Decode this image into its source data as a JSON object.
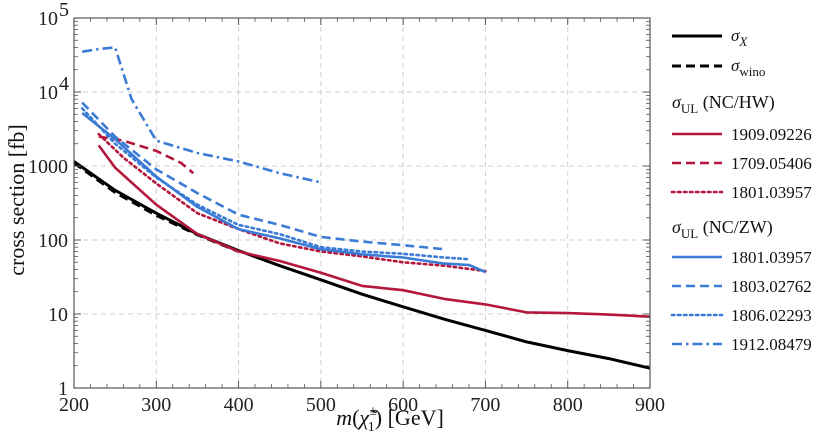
{
  "chart_data": {
    "type": "line",
    "title": "",
    "xlabel_parts": {
      "m": "m(",
      "chi": "χ̃",
      "sup": "±",
      "sub": "1",
      "rest": ") [GeV]"
    },
    "ylabel": "cross section [fb]",
    "xlim": [
      200,
      900
    ],
    "ylim": [
      1,
      100000
    ],
    "yscale": "log",
    "grid": true,
    "legend_position": "right",
    "x_ticks": [
      "200",
      "300",
      "400",
      "500",
      "600",
      "700",
      "800",
      "900"
    ],
    "y_ticks": [
      {
        "value": 1,
        "label": "1"
      },
      {
        "value": 10,
        "label": "10"
      },
      {
        "value": 100,
        "label": "100"
      },
      {
        "value": 1000,
        "label": "1000"
      },
      {
        "value": 10000,
        "label": "10",
        "exp": "4"
      },
      {
        "value": 100000,
        "label": "10",
        "exp": "5"
      }
    ],
    "legend": {
      "theory": [
        {
          "sym": "σ",
          "sub": "X",
          "dash": "solid",
          "color": "#000000"
        },
        {
          "sym": "σ",
          "sub": "wino",
          "dash": "dashed",
          "color": "#000000"
        }
      ],
      "groups": [
        {
          "sym": "σ",
          "sub": "UL",
          "tail": " (NC/HW)"
        },
        {
          "sym": "σ",
          "sub": "UL",
          "tail": " (NC/ZW)"
        }
      ]
    },
    "series": [
      {
        "name": "σX",
        "color": "#000000",
        "dash": "solid",
        "group": "theory",
        "x": [
          200,
          250,
          300,
          350,
          400,
          450,
          500,
          550,
          600,
          650,
          700,
          750,
          800,
          850,
          900
        ],
        "y": [
          1150,
          470,
          230,
          120,
          72,
          45,
          29,
          18.5,
          12.5,
          8.5,
          6,
          4.2,
          3.2,
          2.5,
          1.85
        ]
      },
      {
        "name": "σwino",
        "color": "#000000",
        "dash": "dashed",
        "group": "theory",
        "x": [
          200,
          250,
          300,
          350,
          400
        ],
        "y": [
          1100,
          440,
          215,
          118,
          70
        ]
      },
      {
        "name": "1909.09226",
        "color": "#b5173c",
        "dash": "solid",
        "group": "hw",
        "x": [
          230,
          250,
          300,
          350,
          400,
          450,
          500,
          550,
          600,
          650,
          700,
          750,
          800,
          850,
          900
        ],
        "y": [
          1900,
          950,
          300,
          120,
          70,
          52,
          36,
          24,
          21,
          16,
          13.5,
          10.5,
          10.3,
          9.8,
          9.2
        ]
      },
      {
        "name": "1709.05406",
        "color": "#b5173c",
        "dash": "dashed",
        "group": "hw",
        "x": [
          230,
          260,
          300,
          330,
          345
        ],
        "y": [
          2500,
          2200,
          1600,
          1100,
          800
        ]
      },
      {
        "name": "1801.03957",
        "color": "#b5173c",
        "dash": "dotted",
        "group": "hw",
        "x": [
          230,
          260,
          300,
          350,
          400,
          450,
          500,
          550,
          600,
          650,
          700
        ],
        "y": [
          2700,
          1300,
          580,
          230,
          140,
          90,
          70,
          60,
          50,
          45,
          38
        ]
      },
      {
        "name": "1801.03957",
        "color": "#3a7bd5",
        "dash": "solid",
        "group": "zw",
        "x": [
          210,
          250,
          300,
          350,
          400,
          450,
          500,
          550,
          600,
          650,
          680,
          700
        ],
        "y": [
          5200,
          2300,
          720,
          280,
          140,
          105,
          75,
          64,
          58,
          48,
          46,
          37
        ]
      },
      {
        "name": "1803.02762",
        "color": "#3a7bd5",
        "dash": "dashed",
        "group": "zw",
        "x": [
          210,
          250,
          300,
          350,
          400,
          450,
          500,
          550,
          600,
          650
        ],
        "y": [
          7200,
          2500,
          900,
          430,
          220,
          160,
          110,
          95,
          85,
          75
        ]
      },
      {
        "name": "1806.02293",
        "color": "#3a7bd5",
        "dash": "dotted",
        "group": "zw",
        "x": [
          210,
          250,
          300,
          350,
          400,
          450,
          500,
          550,
          600,
          650,
          680
        ],
        "y": [
          6000,
          2000,
          700,
          300,
          160,
          120,
          80,
          70,
          65,
          58,
          55
        ]
      },
      {
        "name": "1912.08479",
        "color": "#3a7bd5",
        "dash": "dashdot",
        "group": "zw",
        "x": [
          210,
          230,
          250,
          270,
          300,
          350,
          400,
          450,
          500
        ],
        "y": [
          35000,
          38000,
          40000,
          8000,
          2200,
          1500,
          1150,
          800,
          600
        ]
      }
    ]
  }
}
